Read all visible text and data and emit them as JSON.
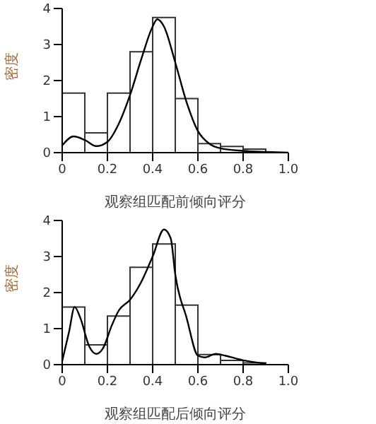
{
  "chart_data": [
    {
      "type": "histogram",
      "xlabel": "观察组匹配前倾向评分",
      "ylabel": "密度",
      "bins": [
        0,
        0.1,
        0.2,
        0.3,
        0.4,
        0.5,
        0.6,
        0.7,
        0.8,
        0.9
      ],
      "values": [
        1.65,
        0.55,
        1.65,
        2.8,
        3.75,
        1.5,
        0.25,
        0.17,
        0.1
      ],
      "color": "#333333",
      "xlim": [
        0,
        1
      ],
      "xticks": [
        0,
        0.2,
        0.4,
        0.6,
        0.8,
        {
          "value": 1,
          "label": "1.0"
        }
      ],
      "ylim": [
        0,
        4
      ],
      "yticks": [
        0,
        1,
        2,
        3,
        4
      ],
      "series": [
        {
          "type": "line",
          "color": "#000000",
          "x": [
            0,
            0.05,
            0.1,
            0.15,
            0.2,
            0.25,
            0.3,
            0.35,
            0.4,
            0.42,
            0.45,
            0.5,
            0.55,
            0.6,
            0.65,
            0.7,
            0.8,
            0.9,
            1.0
          ],
          "values": [
            0.2,
            0.45,
            0.35,
            0.18,
            0.3,
            0.8,
            1.6,
            2.6,
            3.5,
            3.7,
            3.5,
            2.5,
            1.4,
            0.6,
            0.25,
            0.12,
            0.05,
            0.02,
            0
          ]
        }
      ]
    },
    {
      "type": "histogram",
      "xlabel": "观察组匹配后倾向评分",
      "ylabel": "密度",
      "bins": [
        0,
        0.1,
        0.2,
        0.3,
        0.4,
        0.5,
        0.6,
        0.7,
        0.8,
        0.9
      ],
      "values": [
        1.6,
        0.55,
        1.35,
        2.7,
        3.35,
        1.65,
        0.28,
        0.12,
        0.05
      ],
      "color": "#333333",
      "xlim": [
        0,
        1
      ],
      "xticks": [
        0,
        0.2,
        0.4,
        0.6,
        0.8,
        {
          "value": 1,
          "label": "1.0"
        }
      ],
      "ylim": [
        0,
        4
      ],
      "yticks": [
        0,
        1,
        2,
        3,
        4
      ],
      "series": [
        {
          "type": "line",
          "color": "#000000",
          "x": [
            0,
            0.03,
            0.055,
            0.08,
            0.12,
            0.15,
            0.18,
            0.22,
            0.25,
            0.3,
            0.35,
            0.4,
            0.45,
            0.48,
            0.5,
            0.55,
            0.6,
            0.63,
            0.68,
            0.72,
            0.8,
            0.9
          ],
          "values": [
            0.1,
            0.9,
            1.6,
            1.3,
            0.5,
            0.3,
            0.45,
            1.1,
            1.5,
            1.8,
            2.3,
            3.0,
            3.75,
            3.5,
            2.5,
            1.3,
            0.25,
            0.2,
            0.3,
            0.25,
            0.12,
            0.03
          ]
        }
      ]
    }
  ]
}
